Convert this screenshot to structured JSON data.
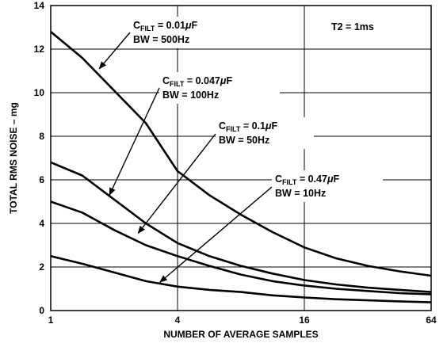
{
  "chart_data": {
    "type": "line",
    "title": "",
    "xlabel": "NUMBER OF AVERAGE SAMPLES",
    "ylabel": "TOTAL RMS NOISE – mg",
    "x_scale": "log2",
    "x_ticks": [
      1,
      4,
      16,
      64
    ],
    "x_tick_labels": [
      "1",
      "4",
      "16",
      "64"
    ],
    "xlim": [
      1,
      64
    ],
    "y_ticks": [
      0,
      2,
      4,
      6,
      8,
      10,
      12,
      14
    ],
    "y_tick_labels": [
      "0",
      "2",
      "4",
      "6",
      "8",
      "10",
      "12",
      "14"
    ],
    "ylim": [
      0,
      14
    ],
    "grid": true,
    "corner_label": "T2 = 1ms",
    "series": [
      {
        "name": "C_FILT = 0.01μF, BW = 500Hz",
        "points": [
          [
            1,
            12.8
          ],
          [
            1.41,
            11.6
          ],
          [
            2,
            10.1
          ],
          [
            2.83,
            8.6
          ],
          [
            4,
            6.4
          ],
          [
            5.66,
            5.3
          ],
          [
            8,
            4.4
          ],
          [
            11.3,
            3.6
          ],
          [
            16,
            2.9
          ],
          [
            22.6,
            2.4
          ],
          [
            32,
            2.05
          ],
          [
            45.3,
            1.8
          ],
          [
            64,
            1.6
          ]
        ]
      },
      {
        "name": "C_FILT = 0.047μF, BW = 100Hz",
        "points": [
          [
            1,
            6.8
          ],
          [
            1.41,
            6.2
          ],
          [
            2,
            5.1
          ],
          [
            2.83,
            4.0
          ],
          [
            4,
            3.1
          ],
          [
            5.66,
            2.5
          ],
          [
            8,
            2.05
          ],
          [
            11.3,
            1.7
          ],
          [
            16,
            1.4
          ],
          [
            22.6,
            1.2
          ],
          [
            32,
            1.05
          ],
          [
            45.3,
            0.95
          ],
          [
            64,
            0.85
          ]
        ]
      },
      {
        "name": "C_FILT = 0.1μF, BW = 50Hz",
        "points": [
          [
            1,
            5.0
          ],
          [
            1.41,
            4.5
          ],
          [
            2,
            3.7
          ],
          [
            2.83,
            3.0
          ],
          [
            4,
            2.5
          ],
          [
            5.66,
            2.05
          ],
          [
            8,
            1.65
          ],
          [
            11.3,
            1.35
          ],
          [
            16,
            1.15
          ],
          [
            22.6,
            1.0
          ],
          [
            32,
            0.9
          ],
          [
            45.3,
            0.8
          ],
          [
            64,
            0.75
          ]
        ]
      },
      {
        "name": "C_FILT = 0.47μF, BW = 10Hz",
        "points": [
          [
            1,
            2.5
          ],
          [
            1.41,
            2.15
          ],
          [
            2,
            1.75
          ],
          [
            2.83,
            1.35
          ],
          [
            4,
            1.1
          ],
          [
            5.66,
            0.95
          ],
          [
            8,
            0.85
          ],
          [
            11.3,
            0.7
          ],
          [
            16,
            0.6
          ],
          [
            22.6,
            0.52
          ],
          [
            32,
            0.47
          ],
          [
            45.3,
            0.42
          ],
          [
            64,
            0.38
          ]
        ]
      }
    ],
    "annotations": [
      {
        "cfilt_value": "0.01",
        "unit": "F",
        "bw": "BW = 500Hz",
        "target": [
          1.7,
          11.1
        ]
      },
      {
        "cfilt_value": "0.047",
        "unit": "F",
        "bw": "BW = 100Hz",
        "target": [
          1.9,
          5.3
        ]
      },
      {
        "cfilt_value": "0.1",
        "unit": "F",
        "bw": "BW = 50Hz",
        "target": [
          2.6,
          3.55
        ]
      },
      {
        "cfilt_value": "0.47",
        "unit": "F",
        "bw": "BW = 10Hz",
        "target": [
          3.3,
          1.3
        ]
      }
    ]
  }
}
